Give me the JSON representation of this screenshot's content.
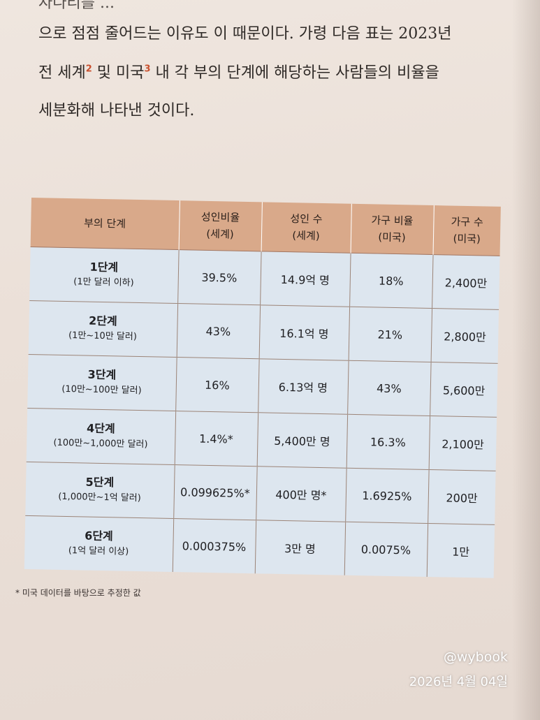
{
  "body_text": {
    "line_0": "자다리를 ...",
    "line_1": "으로 점점 줄어드는 이유도 이 때문이다. 가령 다음 표는 2023년",
    "line_2_a": "전 세계",
    "line_2_sup1": "2",
    "line_2_b": " 및 미국",
    "line_2_sup2": "3",
    "line_2_c": " 내 각 부의 단계에 해당하는 사람들의 비율을",
    "line_3": "세분화해 나타낸 것이다."
  },
  "table": {
    "headers": [
      {
        "line1": "부의 단계",
        "line2": ""
      },
      {
        "line1": "성인비율",
        "line2": "(세계)"
      },
      {
        "line1": "성인 수",
        "line2": "(세계)"
      },
      {
        "line1": "가구 비율",
        "line2": "(미국)"
      },
      {
        "line1": "가구 수",
        "line2": "(미국)"
      }
    ],
    "rows": [
      {
        "stage": "1단계",
        "range": "(1만 달러 이하)",
        "adult_ratio": "39.5%",
        "adult_count": "14.9억 명",
        "household_ratio": "18%",
        "household_count": "2,400만"
      },
      {
        "stage": "2단계",
        "range": "(1만~10만 달러)",
        "adult_ratio": "43%",
        "adult_count": "16.1억 명",
        "household_ratio": "21%",
        "household_count": "2,800만"
      },
      {
        "stage": "3단계",
        "range": "(10만~100만 달러)",
        "adult_ratio": "16%",
        "adult_count": "6.13억 명",
        "household_ratio": "43%",
        "household_count": "5,600만"
      },
      {
        "stage": "4단계",
        "range": "(100만~1,000만 달러)",
        "adult_ratio": "1.4%*",
        "adult_count": "5,400만 명",
        "household_ratio": "16.3%",
        "household_count": "2,100만"
      },
      {
        "stage": "5단계",
        "range": "(1,000만~1억 달러)",
        "adult_ratio": "0.099625%*",
        "adult_count": "400만 명*",
        "household_ratio": "1.6925%",
        "household_count": "200만"
      },
      {
        "stage": "6단계",
        "range": "(1억 달러 이상)",
        "adult_ratio": "0.000375%",
        "adult_count": "3만 명",
        "household_ratio": "0.0075%",
        "household_count": "1만"
      }
    ]
  },
  "footnote": "* 미국 데이터를 바탕으로 추정한 값",
  "watermark": {
    "handle": "@wybook",
    "date": "2026년 4월 04일"
  },
  "colors": {
    "header_bg": "#d9a98a",
    "cell_bg": "#dde6ef",
    "page_bg": "#ebe0d8",
    "superscript": "#c9502e"
  }
}
